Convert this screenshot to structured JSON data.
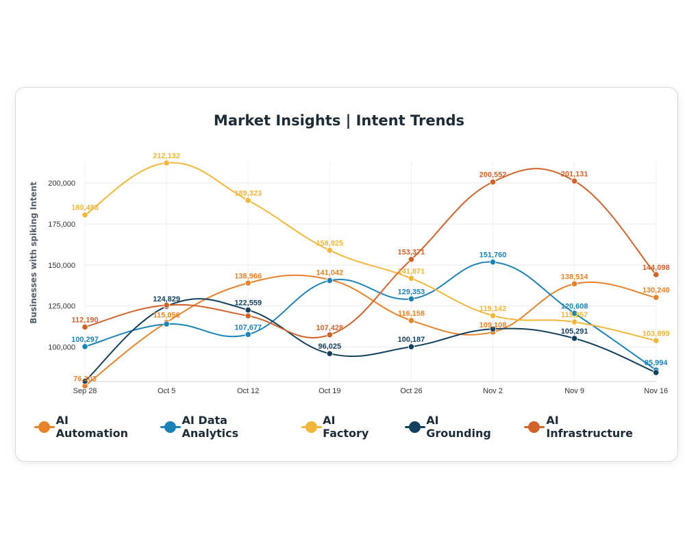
{
  "chart_data": {
    "type": "line",
    "title": "Market Insights | Intent Trends",
    "xlabel": "",
    "ylabel": "Businesses with spiking Intent",
    "categories": [
      "Sep 28",
      "Oct 5",
      "Oct 12",
      "Oct 19",
      "Oct 26",
      "Nov 2",
      "Nov 9",
      "Nov 16"
    ],
    "yticks": [
      "100,000",
      "125,000",
      "150,000",
      "175,000",
      "200,000"
    ],
    "ylim": [
      79000,
      212500
    ],
    "grid": true,
    "legend_position": "bottom",
    "series": [
      {
        "name": "AI Automation",
        "color": "#e8822a",
        "values": [
          76303,
          115056,
          138966,
          141042,
          116158,
          109108,
          138514,
          130240
        ],
        "labels": [
          "76,303",
          "115,056",
          "138,966",
          "141,042",
          "116,158",
          "109,108",
          "138,514",
          "130,240"
        ]
      },
      {
        "name": "AI Data Analytics",
        "color": "#1b82b7",
        "values": [
          100297,
          114000,
          107677,
          140500,
          129353,
          151760,
          120608,
          85994
        ],
        "labels": [
          "100,297",
          "",
          "107,677",
          "",
          "129,353",
          "151,760",
          "120,608",
          "85,994"
        ]
      },
      {
        "name": "AI Factory",
        "color": "#f2b63a",
        "values": [
          180483,
          212132,
          189323,
          158925,
          141871,
          119142,
          115257,
          103899
        ],
        "labels": [
          "180,483",
          "212,132",
          "189,323",
          "158,925",
          "141,871",
          "119,142",
          "115,257",
          "103,899"
        ]
      },
      {
        "name": "AI Grounding",
        "color": "#123f5c",
        "values": [
          79200,
          124829,
          122559,
          96025,
          100187,
          111000,
          105291,
          84500
        ],
        "labels": [
          "",
          "124,829",
          "122,559",
          "96,025",
          "100,187",
          "",
          "105,291",
          ""
        ]
      },
      {
        "name": "AI Infrastructure",
        "color": "#d0622a",
        "values": [
          112190,
          125500,
          119000,
          107428,
          153371,
          200552,
          201131,
          144098
        ],
        "labels": [
          "112,190",
          "",
          "",
          "107,428",
          "153,371",
          "200,552",
          "201,131",
          "144,098"
        ]
      }
    ]
  }
}
